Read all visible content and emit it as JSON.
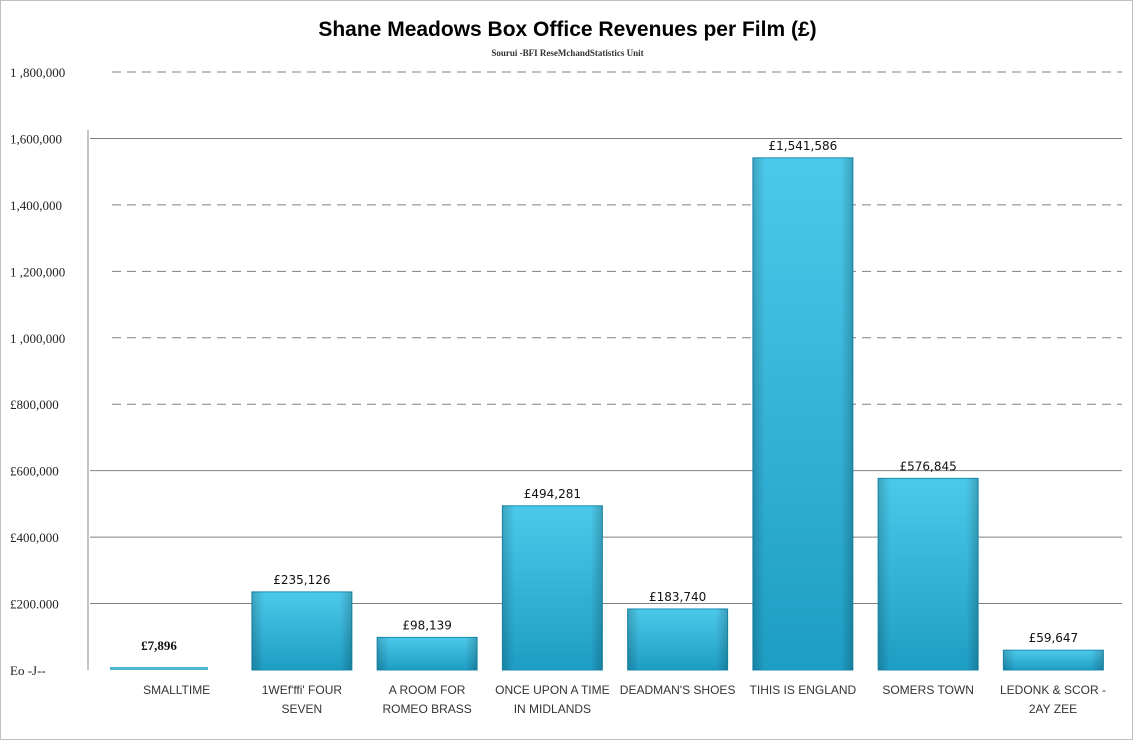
{
  "chart_data": {
    "type": "bar",
    "title": "Shane Meadows Box Office Revenues per Film (£)",
    "subtitle": "Sourui -BFI ReseMchandStatistics Unit",
    "categories": [
      [
        "SMALLTIME"
      ],
      [
        "1WEf'ffi' FOUR",
        "SEVEN"
      ],
      [
        "A ROOM FOR",
        "ROMEO BRASS"
      ],
      [
        "ONCE UPON A TIME",
        "IN MIDLANDS"
      ],
      [
        "DEADMAN'S SHOES"
      ],
      [
        "TIHIS IS ENGLAND"
      ],
      [
        "SOMERS TOWN"
      ],
      [
        "LEDONK & SCOR -",
        "2AY ZEE"
      ]
    ],
    "values": [
      7896,
      235126,
      98139,
      494281,
      183740,
      1541586,
      576845,
      59647
    ],
    "data_labels": [
      "£7,896",
      "£235,126",
      "£98,139",
      "£494,281",
      "£183,740",
      "£1,541,586",
      "£576,845",
      "£59,647"
    ],
    "y_ticks": [
      {
        "value": 0,
        "label": "Eo -J--"
      },
      {
        "value": 200000,
        "label": "£200.000"
      },
      {
        "value": 400000,
        "label": "£400,000"
      },
      {
        "value": 600000,
        "label": "£600,000"
      },
      {
        "value": 800000,
        "label": "£800,000"
      },
      {
        "value": 1000000,
        "label": "1 ,000,000"
      },
      {
        "value": 1200000,
        "label": "1 ,200,000"
      },
      {
        "value": 1400000,
        "label": "1,400,000"
      },
      {
        "value": 1600000,
        "label": "1,600,000"
      },
      {
        "value": 1800000,
        "label": "1 ,800,000"
      }
    ],
    "ylim": [
      0,
      1800000
    ],
    "grid": true,
    "legend": "none",
    "colors": {
      "bar_top": "#4cc9ea",
      "bar_bottom": "#1e9dc4",
      "flat_bar": "#4db8cf",
      "gridline": "#808080"
    }
  }
}
